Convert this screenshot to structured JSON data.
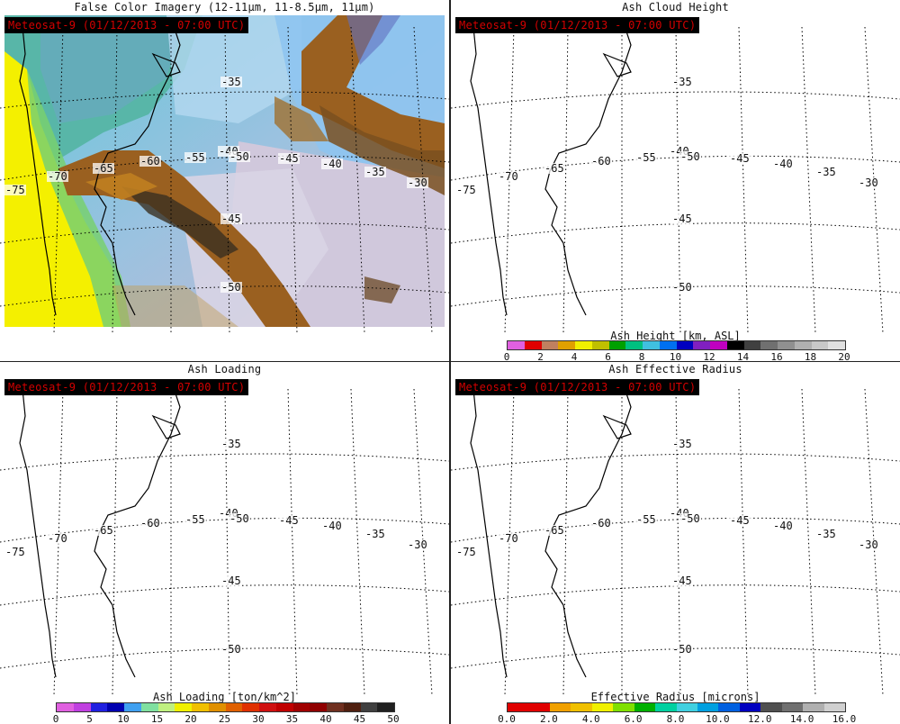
{
  "panels": [
    {
      "title": "False Color Imagery (12-11μm, 11-8.5μm, 11μm)",
      "satellite": "Meteosat-9  (01/12/2013 - 07:00 UTC)"
    },
    {
      "title": "Ash Cloud Height",
      "satellite": "Meteosat-9  (01/12/2013 - 07:00 UTC)",
      "colorbar": {
        "label": "Ash Height [km, ASL]",
        "ticks": [
          "0",
          "2",
          "4",
          "6",
          "8",
          "10",
          "12",
          "14",
          "16",
          "18",
          "20"
        ],
        "colors": [
          "#e060e0",
          "#e00000",
          "#c08060",
          "#e0a000",
          "#f0f000",
          "#c0c000",
          "#00a000",
          "#00c080",
          "#40c0e0",
          "#0070f0",
          "#0000c0",
          "#8020c0",
          "#c000c0",
          "#000000",
          "#404040",
          "#707070",
          "#909090",
          "#b0b0b0",
          "#c8c8c8",
          "#e0e0e0"
        ]
      }
    },
    {
      "title": "Ash Loading",
      "satellite": "Meteosat-9  (01/12/2013 - 07:00 UTC)",
      "colorbar": {
        "label": "Ash Loading [ton/km^2]",
        "ticks": [
          "0",
          "5",
          "10",
          "15",
          "20",
          "25",
          "30",
          "35",
          "40",
          "45",
          "50"
        ],
        "colors": [
          "#e060e0",
          "#c040e0",
          "#2020e0",
          "#0000b0",
          "#40a0f0",
          "#80e0a0",
          "#c0f080",
          "#f0f000",
          "#f0c000",
          "#e09000",
          "#e06000",
          "#e03000",
          "#d01010",
          "#c00000",
          "#a00000",
          "#900000",
          "#703020",
          "#502010",
          "#404040",
          "#202020"
        ]
      }
    },
    {
      "title": "Ash Effective Radius",
      "satellite": "Meteosat-9  (01/12/2013 - 07:00 UTC)",
      "colorbar": {
        "label": "Effective Radius [microns]",
        "ticks": [
          "0.0",
          "2.0",
          "4.0",
          "6.0",
          "8.0",
          "10.0",
          "12.0",
          "14.0",
          "16.0"
        ],
        "colors": [
          "#e00000",
          "#e00000",
          "#f0a000",
          "#f0c000",
          "#f0f000",
          "#80e000",
          "#00b000",
          "#00d0a0",
          "#40d0e0",
          "#00a0e0",
          "#0060e0",
          "#0000c0",
          "#505050",
          "#707070",
          "#b0b0b0",
          "#d0d0d0"
        ]
      }
    }
  ],
  "grid_labels": {
    "lon": [
      "-75",
      "-70",
      "-65",
      "-60",
      "-55",
      "-50",
      "-45",
      "-40",
      "-35",
      "-30"
    ],
    "lat": [
      "-35",
      "-40",
      "-45",
      "-50"
    ]
  }
}
